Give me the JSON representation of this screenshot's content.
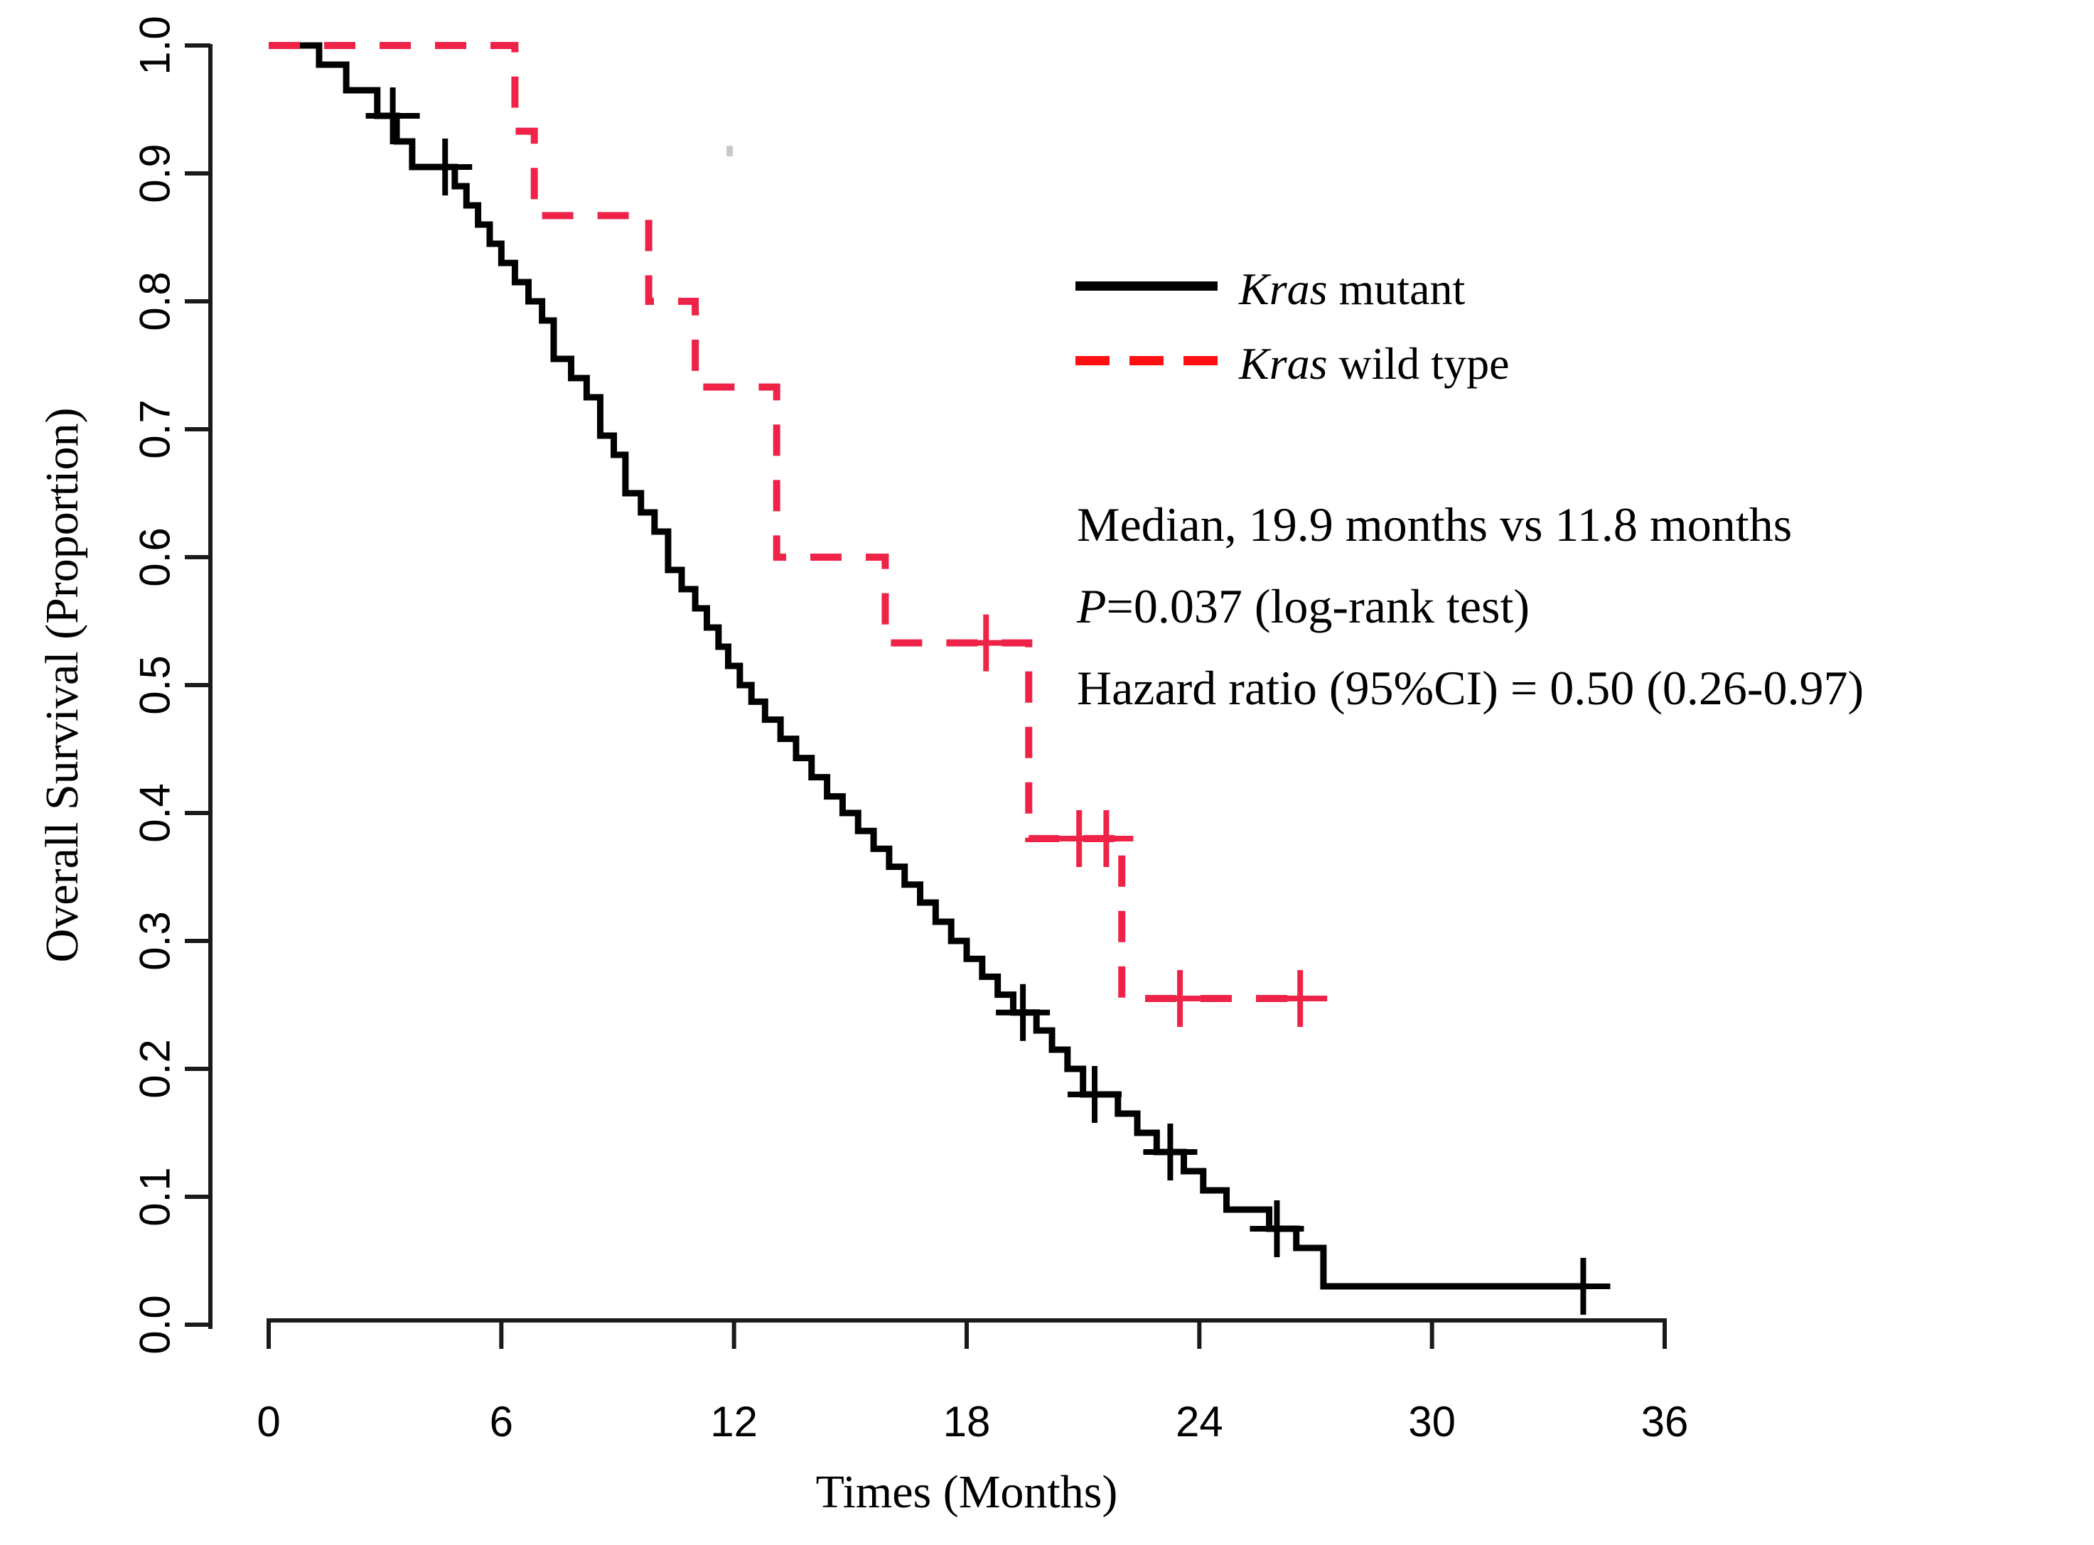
{
  "chart_data": {
    "type": "line",
    "subtype": "kaplan-meier-step",
    "title": "",
    "xlabel": "Times (Months)",
    "ylabel": "Overall Survival (Proportion)",
    "xlim": [
      0,
      36
    ],
    "ylim": [
      0.0,
      1.0
    ],
    "x_ticks": [
      0,
      6,
      12,
      18,
      24,
      30,
      36
    ],
    "y_tick_labels": [
      "0.0",
      "0.1",
      "0.2",
      "0.3",
      "0.4",
      "0.5",
      "0.6",
      "0.7",
      "0.8",
      "0.9",
      "1.0"
    ],
    "grid": "off",
    "legend_position": "upper-right-inside",
    "series": [
      {
        "name": "Kras mutant",
        "label_gene": "Kras",
        "label_rest": " mutant",
        "color": "#000000",
        "line_style": "solid",
        "steps": [
          [
            0,
            1.0
          ],
          [
            1.3,
            0.985
          ],
          [
            2.0,
            0.965
          ],
          [
            2.8,
            0.945
          ],
          [
            3.3,
            0.925
          ],
          [
            3.7,
            0.905
          ],
          [
            4.8,
            0.89
          ],
          [
            5.1,
            0.875
          ],
          [
            5.4,
            0.86
          ],
          [
            5.7,
            0.845
          ],
          [
            6.0,
            0.83
          ],
          [
            6.35,
            0.815
          ],
          [
            6.7,
            0.8
          ],
          [
            7.05,
            0.785
          ],
          [
            7.35,
            0.755
          ],
          [
            7.8,
            0.74
          ],
          [
            8.2,
            0.725
          ],
          [
            8.55,
            0.695
          ],
          [
            8.9,
            0.68
          ],
          [
            9.2,
            0.65
          ],
          [
            9.6,
            0.635
          ],
          [
            9.95,
            0.62
          ],
          [
            10.3,
            0.59
          ],
          [
            10.65,
            0.575
          ],
          [
            11.0,
            0.56
          ],
          [
            11.3,
            0.545
          ],
          [
            11.6,
            0.53
          ],
          [
            11.85,
            0.515
          ],
          [
            12.15,
            0.5
          ],
          [
            12.45,
            0.487
          ],
          [
            12.8,
            0.473
          ],
          [
            13.2,
            0.458
          ],
          [
            13.6,
            0.443
          ],
          [
            14.0,
            0.428
          ],
          [
            14.4,
            0.413
          ],
          [
            14.8,
            0.4
          ],
          [
            15.2,
            0.386
          ],
          [
            15.6,
            0.372
          ],
          [
            16.0,
            0.358
          ],
          [
            16.4,
            0.344
          ],
          [
            16.8,
            0.33
          ],
          [
            17.2,
            0.315
          ],
          [
            17.6,
            0.3
          ],
          [
            18.0,
            0.286
          ],
          [
            18.4,
            0.272
          ],
          [
            18.8,
            0.258
          ],
          [
            19.2,
            0.244
          ],
          [
            19.8,
            0.23
          ],
          [
            20.2,
            0.215
          ],
          [
            20.6,
            0.2
          ],
          [
            21.0,
            0.18
          ],
          [
            21.9,
            0.165
          ],
          [
            22.4,
            0.15
          ],
          [
            22.9,
            0.135
          ],
          [
            23.6,
            0.12
          ],
          [
            24.1,
            0.105
          ],
          [
            24.7,
            0.09
          ],
          [
            25.8,
            0.075
          ],
          [
            26.5,
            0.06
          ],
          [
            27.2,
            0.03
          ]
        ],
        "end_time": 33.9,
        "censor_marks": [
          [
            3.2,
            0.945
          ],
          [
            4.55,
            0.905
          ],
          [
            19.45,
            0.244
          ],
          [
            21.3,
            0.18
          ],
          [
            23.25,
            0.135
          ],
          [
            26.0,
            0.075
          ],
          [
            33.9,
            0.03
          ]
        ]
      },
      {
        "name": "Kras wild type",
        "label_gene": "Kras",
        "label_rest": " wild type",
        "color": "#ee2347",
        "line_style": "dashed",
        "steps": [
          [
            0,
            1.0
          ],
          [
            6.35,
            0.933
          ],
          [
            6.85,
            0.867
          ],
          [
            9.8,
            0.8
          ],
          [
            11.0,
            0.733
          ],
          [
            13.1,
            0.6
          ],
          [
            15.9,
            0.533
          ],
          [
            19.6,
            0.38
          ],
          [
            22.0,
            0.255
          ]
        ],
        "end_time": 26.6,
        "censor_marks": [
          [
            18.5,
            0.533
          ],
          [
            20.9,
            0.38
          ],
          [
            21.6,
            0.38
          ],
          [
            23.5,
            0.255
          ],
          [
            26.6,
            0.255
          ]
        ]
      }
    ],
    "annotations": {
      "median_line": "Median, 19.9 months vs 11.8 months",
      "p_italic": "P",
      "p_rest": "=0.037 (log-rank test)",
      "hazard_line": "Hazard ratio (95%CI) = 0.50 (0.26-0.97)"
    }
  },
  "figure": {
    "background_color": "#ffffff",
    "axis_color": "#1a1a1a",
    "legend_solid_color": "#000000",
    "legend_dash_color": "#ff0f0f"
  }
}
